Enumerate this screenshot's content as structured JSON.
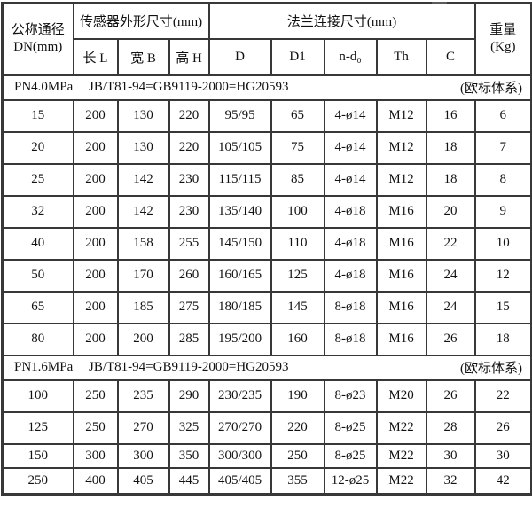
{
  "chart_data": {
    "type": "table",
    "header": {
      "dn_line1": "公称通径",
      "dn_line2": "DN(mm)",
      "sensor_group": "传感器外形尺寸(mm)",
      "flange_group": "法兰连接尺寸(mm)",
      "weight_line1": "重量",
      "weight_line2": "(Kg)",
      "subheaders": [
        "长 L",
        "宽 B",
        "高 H",
        "D",
        "D1",
        "n-d₀",
        "Th",
        "C"
      ]
    },
    "columns_full": [
      "公称通径 DN(mm)",
      "长 L",
      "宽 B",
      "高 H",
      "D",
      "D1",
      "n-d₀",
      "Th",
      "C",
      "重量 (Kg)"
    ],
    "sections": [
      {
        "pressure": "PN4.0MPa",
        "standard": "JB/T81-94=GB9119-2000=HG20593",
        "note": "(欧标体系)",
        "rows": [
          [
            "15",
            "200",
            "130",
            "220",
            "95/95",
            "65",
            "4-ø14",
            "M12",
            "16",
            "6"
          ],
          [
            "20",
            "200",
            "130",
            "220",
            "105/105",
            "75",
            "4-ø14",
            "M12",
            "18",
            "7"
          ],
          [
            "25",
            "200",
            "142",
            "230",
            "115/115",
            "85",
            "4-ø14",
            "M12",
            "18",
            "8"
          ],
          [
            "32",
            "200",
            "142",
            "230",
            "135/140",
            "100",
            "4-ø18",
            "M16",
            "20",
            "9"
          ],
          [
            "40",
            "200",
            "158",
            "255",
            "145/150",
            "110",
            "4-ø18",
            "M16",
            "22",
            "10"
          ],
          [
            "50",
            "200",
            "170",
            "260",
            "160/165",
            "125",
            "4-ø18",
            "M16",
            "24",
            "12"
          ],
          [
            "65",
            "200",
            "185",
            "275",
            "180/185",
            "145",
            "8-ø18",
            "M16",
            "24",
            "15"
          ],
          [
            "80",
            "200",
            "200",
            "285",
            "195/200",
            "160",
            "8-ø18",
            "M16",
            "26",
            "18"
          ]
        ]
      },
      {
        "pressure": "PN1.6MPa",
        "standard": "JB/T81-94=GB9119-2000=HG20593",
        "note": "(欧标体系)",
        "rows": [
          [
            "100",
            "250",
            "235",
            "290",
            "230/235",
            "190",
            "8-ø23",
            "M20",
            "26",
            "22"
          ],
          [
            "125",
            "250",
            "270",
            "325",
            "270/270",
            "220",
            "8-ø25",
            "M22",
            "28",
            "26"
          ],
          [
            "150",
            "300",
            "300",
            "350",
            "300/300",
            "250",
            "8-ø25",
            "M22",
            "30",
            "30"
          ],
          [
            "250",
            "400",
            "405",
            "445",
            "405/405",
            "355",
            "12-ø25",
            "M22",
            "32",
            "42"
          ]
        ]
      }
    ]
  }
}
